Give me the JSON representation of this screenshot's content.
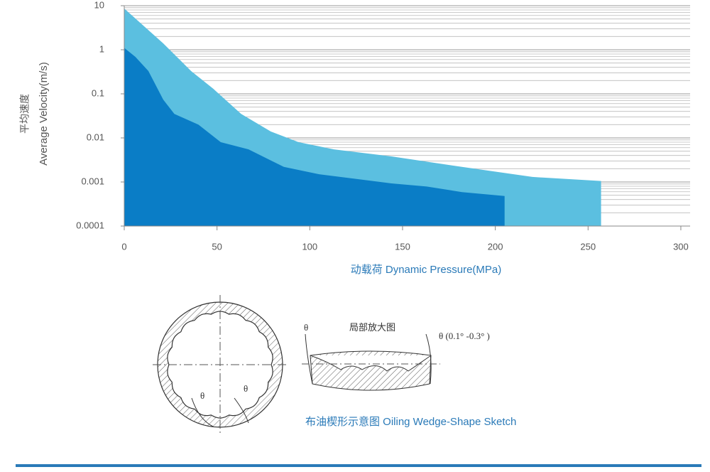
{
  "chart_data": {
    "type": "area",
    "y_label": [
      "平均速度",
      "Average Velocity(m/s)"
    ],
    "x_label": "动载荷  Dynamic Pressure(MPa)",
    "xlim": [
      0,
      305
    ],
    "xticks": [
      0,
      50,
      100,
      150,
      200,
      250,
      300
    ],
    "ylim": [
      0.0001,
      10
    ],
    "yticks": [
      10,
      1,
      0.1,
      0.01,
      0.001,
      0.0001
    ],
    "log_y": true,
    "grid": true,
    "series": [
      {
        "color": "#5bbfe0",
        "x": [
          0,
          21,
          36,
          48,
          63,
          79,
          94,
          113,
          144,
          182,
          220,
          257
        ],
        "values": [
          8.6,
          1.4,
          0.33,
          0.13,
          0.035,
          0.014,
          0.008,
          0.0055,
          0.0038,
          0.0022,
          0.0013,
          0.00105
        ]
      },
      {
        "color": "#0a7dc6",
        "x": [
          0,
          6,
          13,
          21,
          27,
          40,
          52,
          67,
          86,
          105,
          144,
          163,
          182,
          205
        ],
        "values": [
          1.1,
          0.69,
          0.33,
          0.074,
          0.035,
          0.02,
          0.008,
          0.0055,
          0.0022,
          0.0015,
          0.00093,
          0.00079,
          0.00059,
          0.00048
        ]
      }
    ]
  },
  "diagram": {
    "theta_left": "θ",
    "theta_right": "θ",
    "theta_detail": "θ",
    "detail_title": "局部放大图",
    "detail_angle": "θ (0.1° -0.3° )",
    "caption": "布油楔形示意图  Oiling Wedge-Shape Sketch"
  }
}
